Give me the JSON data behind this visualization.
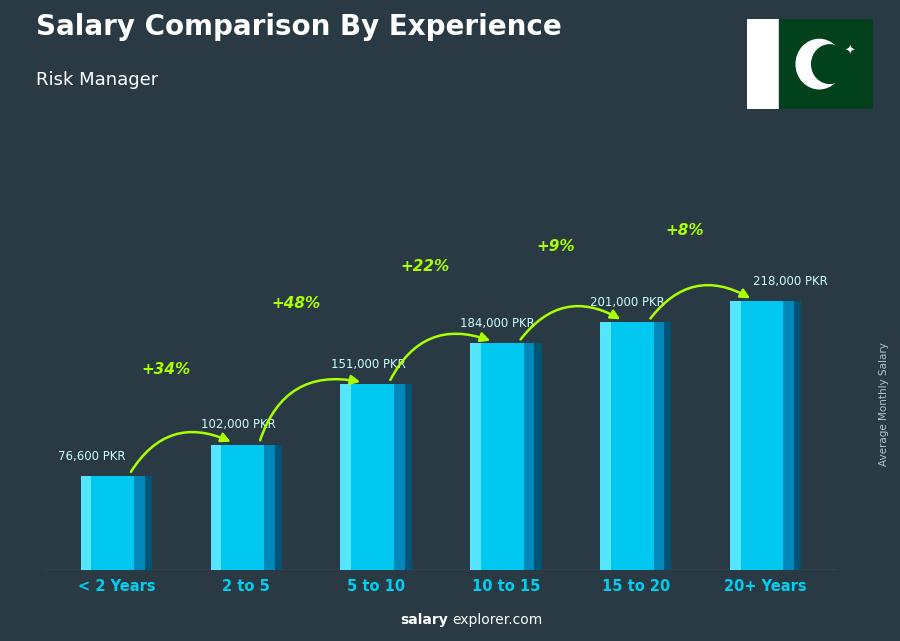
{
  "title": "Salary Comparison By Experience",
  "subtitle": "Risk Manager",
  "categories": [
    "< 2 Years",
    "2 to 5",
    "5 to 10",
    "10 to 15",
    "15 to 20",
    "20+ Years"
  ],
  "values": [
    76600,
    102000,
    151000,
    184000,
    201000,
    218000
  ],
  "labels": [
    "76,600 PKR",
    "102,000 PKR",
    "151,000 PKR",
    "184,000 PKR",
    "201,000 PKR",
    "218,000 PKR"
  ],
  "pct_changes": [
    "+34%",
    "+48%",
    "+22%",
    "+9%",
    "+8%"
  ],
  "bar_color_main": "#00c8f0",
  "bar_color_light": "#55e5ff",
  "bar_color_dark": "#0088bb",
  "bar_color_darker": "#005577",
  "pct_color": "#aaff00",
  "xtick_color": "#00d0f0",
  "label_color": "#ccffff",
  "title_color": "#ffffff",
  "subtitle_color": "#ffffff",
  "bg_color": "#2a3a45",
  "ylabel": "Average Monthly Salary",
  "footer_bold": "salary",
  "footer_reg": "explorer.com",
  "ylim_max": 270000,
  "flag_white": "#ffffff",
  "flag_green": "#01411C"
}
